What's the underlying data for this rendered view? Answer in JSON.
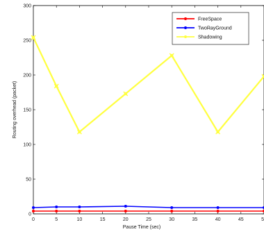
{
  "chart_data": {
    "type": "line",
    "title": "",
    "xlabel": "Pause Time (sec)",
    "ylabel": "Routing overhead (packet)",
    "x": [
      0,
      5,
      10,
      20,
      30,
      40,
      50
    ],
    "xlim": [
      0,
      50
    ],
    "ylim": [
      0,
      300
    ],
    "xticks": [
      0,
      5,
      10,
      15,
      20,
      25,
      30,
      35,
      40,
      45,
      50
    ],
    "yticks": [
      0,
      50,
      100,
      150,
      200,
      250,
      300
    ],
    "grid": false,
    "legend_position": "top-right",
    "series": [
      {
        "name": "FreeSpace",
        "color": "#ff0000",
        "values": [
          4,
          4,
          4,
          4,
          4,
          4,
          4
        ]
      },
      {
        "name": "TwoRayGround",
        "color": "#0000ff",
        "values": [
          9,
          10,
          10,
          11,
          9,
          9,
          9
        ]
      },
      {
        "name": "Shadowing",
        "color": "#ffff40",
        "values": [
          254,
          184,
          118,
          173,
          228,
          118,
          198
        ]
      }
    ]
  }
}
